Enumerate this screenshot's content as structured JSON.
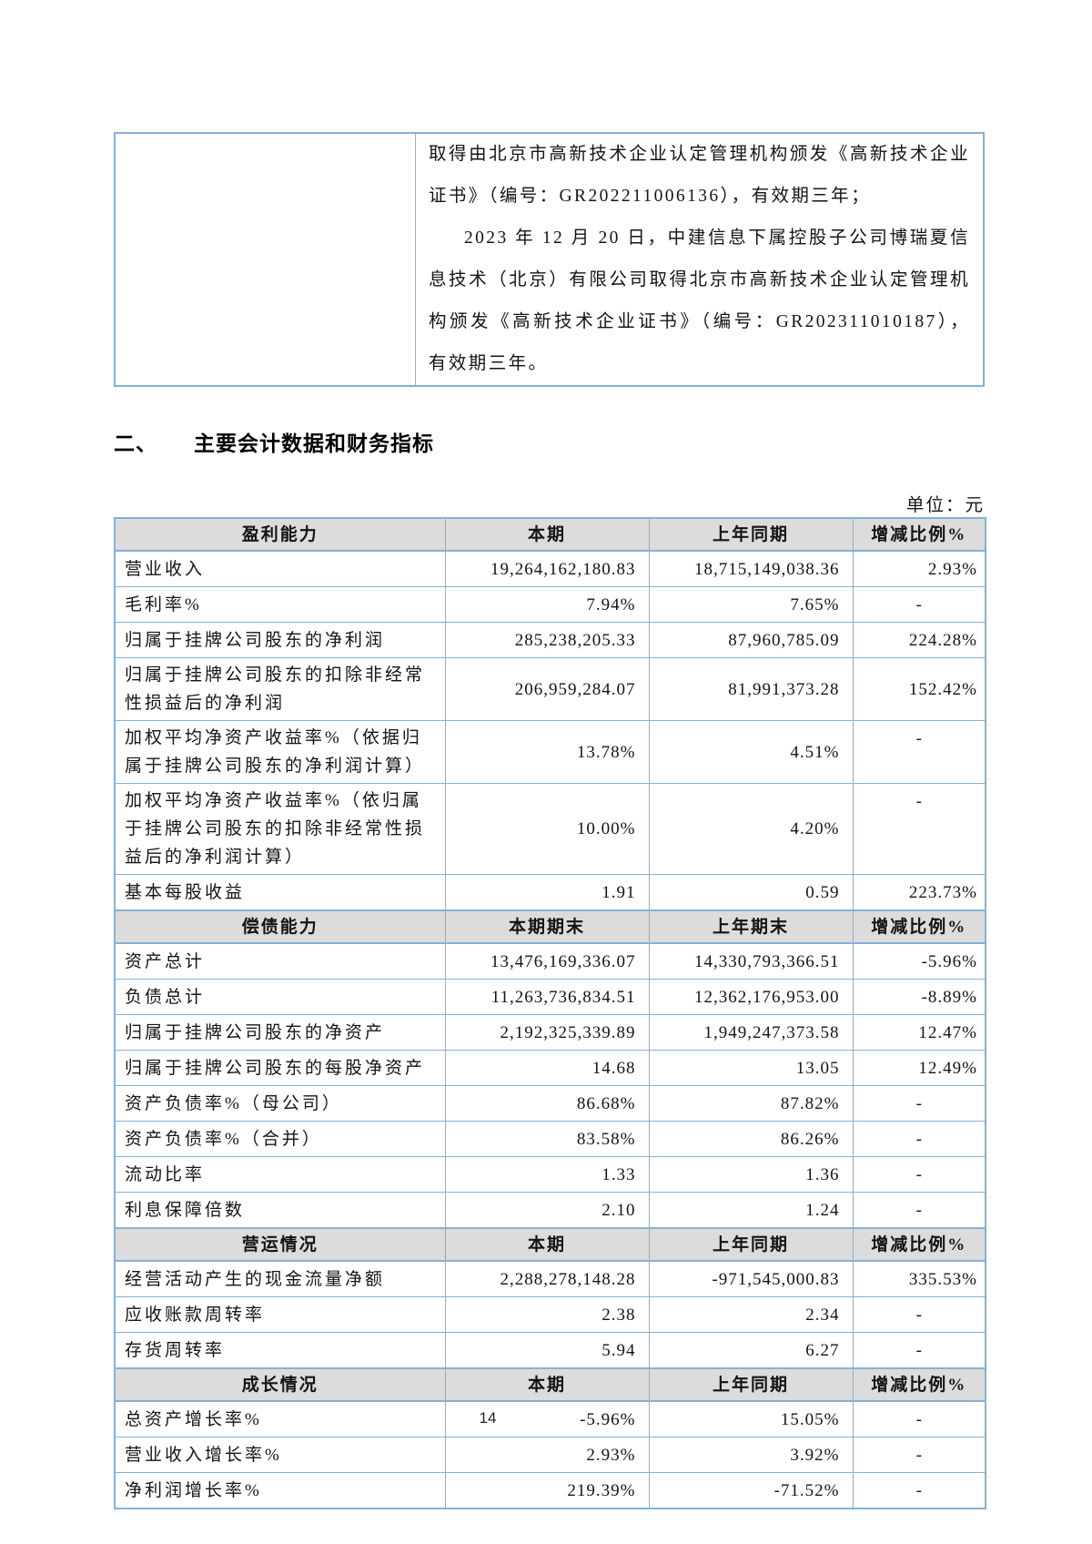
{
  "colors": {
    "table_border": "#83b1d8",
    "section_header_bg": "#dcdcdc"
  },
  "continuation_table": {
    "left_cell": "",
    "paragraphs": [
      "取得由北京市高新技术企业认定管理机构颁发《高新技术企业证书》（编号：GR202211006136），有效期三年；",
      "2023 年 12 月 20 日，中建信息下属控股子公司博瑞夏信息技术（北京）有限公司取得北京市高新技术企业认定管理机构颁发《高新技术企业证书》（编号：GR202311010187），有效期三年。"
    ]
  },
  "section_heading": {
    "number": "二、",
    "title": "主要会计数据和财务指标"
  },
  "unit_label": "单位：元",
  "financial_table": {
    "sections": [
      {
        "header": [
          "盈利能力",
          "本期",
          "上年同期",
          "增减比例%"
        ],
        "rows": [
          {
            "label": "营业收入",
            "current": "19,264,162,180.83",
            "prior": "18,715,149,038.36",
            "change": "2.93%"
          },
          {
            "label": "毛利率%",
            "current": "7.94%",
            "prior": "7.65%",
            "change": "-"
          },
          {
            "label": "归属于挂牌公司股东的净利润",
            "current": "285,238,205.33",
            "prior": "87,960,785.09",
            "change": "224.28%"
          },
          {
            "label": "归属于挂牌公司股东的扣除非经常性损益后的净利润",
            "current": "206,959,284.07",
            "prior": "81,991,373.28",
            "change": "152.42%"
          },
          {
            "label": "加权平均净资产收益率%（依据归属于挂牌公司股东的净利润计算）",
            "current": "13.78%",
            "prior": "4.51%",
            "change": "-",
            "change_top": true
          },
          {
            "label": "加权平均净资产收益率%（依归属于挂牌公司股东的扣除非经常性损益后的净利润计算）",
            "current": "10.00%",
            "prior": "4.20%",
            "change": "-",
            "change_top": true
          },
          {
            "label": "基本每股收益",
            "current": "1.91",
            "prior": "0.59",
            "change": "223.73%"
          }
        ]
      },
      {
        "header": [
          "偿债能力",
          "本期期末",
          "上年期末",
          "增减比例%"
        ],
        "rows": [
          {
            "label": "资产总计",
            "current": "13,476,169,336.07",
            "prior": "14,330,793,366.51",
            "change": "-5.96%"
          },
          {
            "label": "负债总计",
            "current": "11,263,736,834.51",
            "prior": "12,362,176,953.00",
            "change": "-8.89%"
          },
          {
            "label": "归属于挂牌公司股东的净资产",
            "current": "2,192,325,339.89",
            "prior": "1,949,247,373.58",
            "change": "12.47%"
          },
          {
            "label": "归属于挂牌公司股东的每股净资产",
            "current": "14.68",
            "prior": "13.05",
            "change": "12.49%"
          },
          {
            "label": "资产负债率%（母公司）",
            "current": "86.68%",
            "prior": "87.82%",
            "change": "-"
          },
          {
            "label": "资产负债率%（合并）",
            "current": "83.58%",
            "prior": "86.26%",
            "change": "-"
          },
          {
            "label": "流动比率",
            "current": "1.33",
            "prior": "1.36",
            "change": "-"
          },
          {
            "label": "利息保障倍数",
            "current": "2.10",
            "prior": "1.24",
            "change": "-"
          }
        ]
      },
      {
        "header": [
          "营运情况",
          "本期",
          "上年同期",
          "增减比例%"
        ],
        "rows": [
          {
            "label": "经营活动产生的现金流量净额",
            "current": "2,288,278,148.28",
            "prior": "-971,545,000.83",
            "change": "335.53%"
          },
          {
            "label": "应收账款周转率",
            "current": "2.38",
            "prior": "2.34",
            "change": "-"
          },
          {
            "label": "存货周转率",
            "current": "5.94",
            "prior": "6.27",
            "change": "-"
          }
        ]
      },
      {
        "header": [
          "成长情况",
          "本期",
          "上年同期",
          "增减比例%"
        ],
        "rows": [
          {
            "label": "总资产增长率%",
            "current": "-5.96%",
            "prior": "15.05%",
            "change": "-"
          },
          {
            "label": "营业收入增长率%",
            "current": "2.93%",
            "prior": "3.92%",
            "change": "-"
          },
          {
            "label": "净利润增长率%",
            "current": "219.39%",
            "prior": "-71.52%",
            "change": "-"
          }
        ]
      }
    ]
  },
  "page": {
    "number": "14"
  }
}
